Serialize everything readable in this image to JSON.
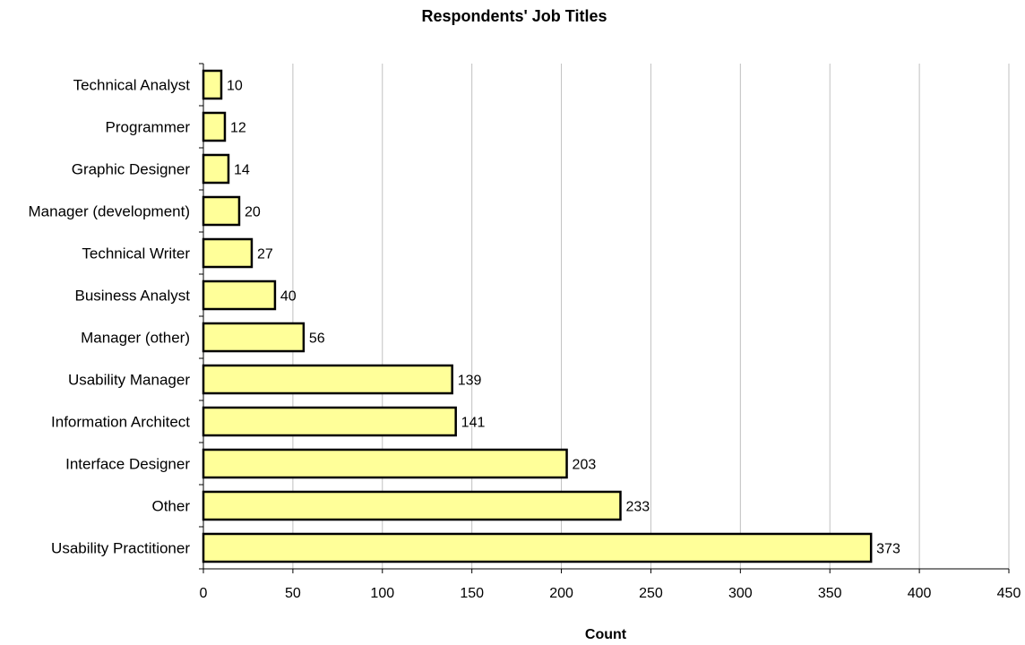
{
  "chart_data": {
    "type": "bar",
    "orientation": "horizontal",
    "title": "Respondents' Job Titles",
    "xlabel": "Count",
    "ylabel": "",
    "xlim": [
      0,
      450
    ],
    "xticks": [
      0,
      50,
      100,
      150,
      200,
      250,
      300,
      350,
      400,
      450
    ],
    "grid": "vertical",
    "categories": [
      "Technical Analyst",
      "Programmer",
      "Graphic Designer",
      "Manager (development)",
      "Technical Writer",
      "Business Analyst",
      "Manager (other)",
      "Usability Manager",
      "Information Architect",
      "Interface Designer",
      "Other",
      "Usability Practitioner"
    ],
    "values": [
      10,
      12,
      14,
      20,
      27,
      40,
      56,
      139,
      141,
      203,
      233,
      373
    ],
    "colors": {
      "bar_fill": "#ffff99",
      "bar_stroke": "#000000",
      "grid": "#c0c0c0"
    }
  }
}
